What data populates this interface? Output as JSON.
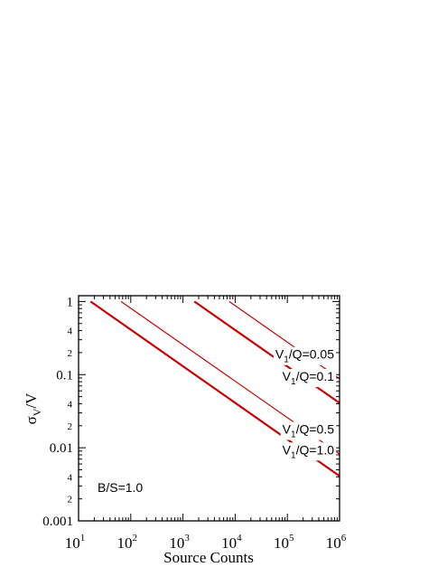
{
  "chart_data": {
    "type": "line",
    "title": "",
    "xlabel": "Source Counts",
    "ylabel": "σ_V/V",
    "x_scale": "log",
    "y_scale": "log",
    "xlim": [
      10,
      1000000
    ],
    "ylim": [
      0.001,
      1.2
    ],
    "x_ticks": [
      {
        "value": 10,
        "base": "10",
        "exp": "1"
      },
      {
        "value": 100,
        "base": "10",
        "exp": "2"
      },
      {
        "value": 1000,
        "base": "10",
        "exp": "3"
      },
      {
        "value": 10000,
        "base": "10",
        "exp": "4"
      },
      {
        "value": 100000,
        "base": "10",
        "exp": "5"
      },
      {
        "value": 1000000,
        "base": "10",
        "exp": "6"
      }
    ],
    "y_major_ticks": [
      {
        "value": 1,
        "label": "1"
      },
      {
        "value": 0.1,
        "label": "0.1"
      },
      {
        "value": 0.01,
        "label": "0.01"
      },
      {
        "value": 0.001,
        "label": "0.001"
      }
    ],
    "y_minor_labels": [
      {
        "value": 0.4,
        "label": "4"
      },
      {
        "value": 0.2,
        "label": "2"
      },
      {
        "value": 0.04,
        "label": "4"
      },
      {
        "value": 0.02,
        "label": "2"
      },
      {
        "value": 0.004,
        "label": "4"
      },
      {
        "value": 0.002,
        "label": "2"
      }
    ],
    "grid": false,
    "annotation": "B/S=1.0",
    "color": "#cc0000",
    "series": [
      {
        "label_main": "V",
        "label_sub": "1",
        "label_rest": "/Q=0.05",
        "x": [
          7700,
          1000000
        ],
        "y": [
          1.0,
          0.088
        ],
        "label_at": [
          1000000,
          0.19
        ]
      },
      {
        "label_main": "V",
        "label_sub": "1",
        "label_rest": "/Q=0.1",
        "x": [
          1650,
          1000000
        ],
        "y": [
          1.0,
          0.041
        ],
        "label_at": [
          1000000,
          0.095
        ]
      },
      {
        "label_main": "V",
        "label_sub": "1",
        "label_rest": "/Q=0.5",
        "x": [
          65,
          1000000
        ],
        "y": [
          1.0,
          0.0082
        ],
        "label_at": [
          1000000,
          0.018
        ]
      },
      {
        "label_main": "V",
        "label_sub": "1",
        "label_rest": "/Q=1.0",
        "x": [
          17,
          1000000
        ],
        "y": [
          1.0,
          0.0041
        ],
        "label_at": [
          1000000,
          0.0094
        ]
      }
    ]
  }
}
